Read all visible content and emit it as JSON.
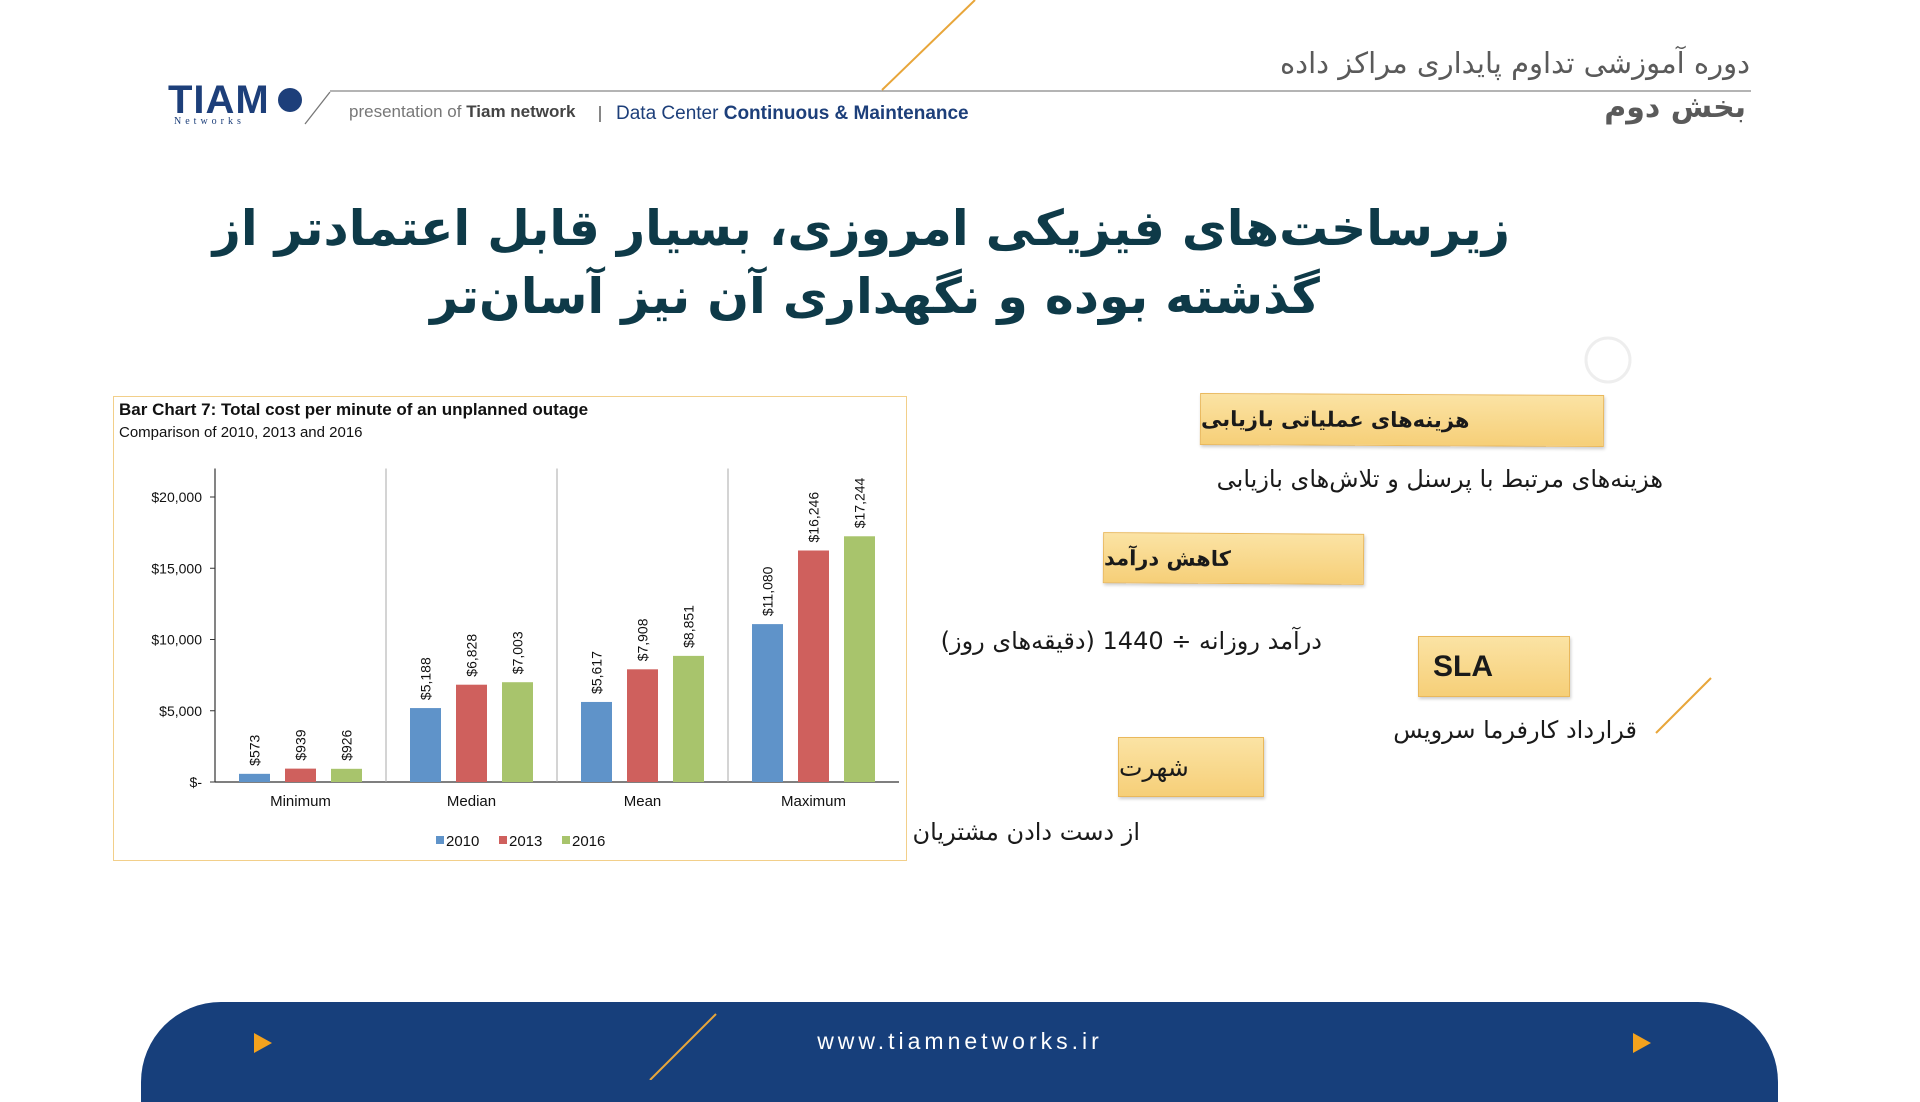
{
  "header": {
    "course": "دوره آموزشی تداوم پایداری مراکز داده",
    "part": "بخش دوم",
    "brand": "TIAM",
    "brand_sub": "Networks",
    "presentation_of": "presentation of",
    "company": "Tiam network",
    "topic_light": "Data Center",
    "topic_bold": "Continuous & Maintenance"
  },
  "title": {
    "lines": [
      "زیرساخت‌های فیزیکی امروزی، بسیار قابل اعتمادتر از",
      "گذشته بوده و نگهداری آن نیز آسان‌تر"
    ]
  },
  "cards": [
    {
      "heading": "هزینه‌های عملیاتی بازیابی",
      "text": "هزینه‌های مرتبط با پرسنل و تلاش‌های بازیابی"
    },
    {
      "heading": "کاهش درآمد",
      "text": "درآمد روزانه ÷ 1440 (دقیقه‌های روز)"
    },
    {
      "heading": "SLA",
      "text": "قرارداد کارفرما سرویس"
    },
    {
      "heading": "شهرت",
      "text": "از دست دادن مشتریان"
    }
  ],
  "footer": {
    "url": "www.tiamnetworks.ir"
  },
  "chart_data": {
    "type": "bar",
    "title": "Bar Chart 7: Total cost per minute of an unplanned outage",
    "subtitle": "Comparison of 2010, 2013 and 2016",
    "categories": [
      "Minimum",
      "Median",
      "Mean",
      "Maximum"
    ],
    "series": [
      {
        "name": "2010",
        "color": "#5f93c9",
        "values": [
          573,
          5188,
          5617,
          11080
        ],
        "value_labels": [
          "$573",
          "$5,188",
          "$5,617",
          "$11,080"
        ]
      },
      {
        "name": "2013",
        "color": "#cf605d",
        "values": [
          939,
          6828,
          7908,
          16246
        ],
        "value_labels": [
          "$939",
          "$6,828",
          "$7,908",
          "$16,246"
        ]
      },
      {
        "name": "2016",
        "color": "#a8c46c",
        "values": [
          926,
          7003,
          8851,
          17244
        ],
        "value_labels": [
          "$926",
          "$7,003",
          "$8,851",
          "$17,244"
        ]
      }
    ],
    "ylim": [
      0,
      22000
    ],
    "yticks": [
      {
        "value": 0,
        "label": "$-"
      },
      {
        "value": 5000,
        "label": "$5,000"
      },
      {
        "value": 10000,
        "label": "$10,000"
      },
      {
        "value": 15000,
        "label": "$15,000"
      },
      {
        "value": 20000,
        "label": "$20,000"
      }
    ],
    "grid": false,
    "legend": "bottom"
  }
}
